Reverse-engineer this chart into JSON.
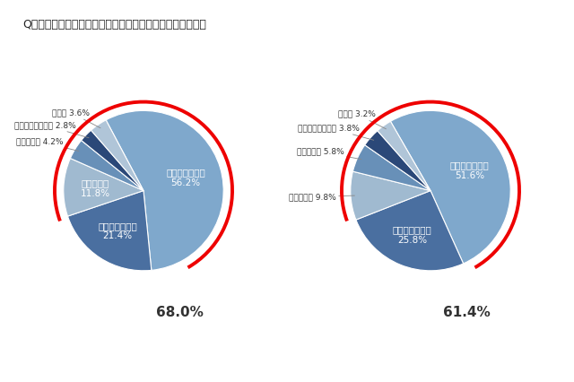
{
  "title": "Q：今年に入って自転車マナーが良くなったと思いますか？",
  "pie1": {
    "labels": [
      "良くなってない",
      "少し良くなった",
      "悪くなった",
      "良くなった",
      "とても良くなった",
      "その他"
    ],
    "values": [
      56.2,
      21.4,
      11.8,
      4.2,
      2.8,
      3.6
    ],
    "colors": [
      "#7FA8CC",
      "#4A6FA0",
      "#A0BAD0",
      "#6890B8",
      "#2B4878",
      "#B0C5D8"
    ],
    "pct_label": "68.0%",
    "inside_labels": [
      0,
      1
    ],
    "startangle": 118
  },
  "pie2": {
    "labels": [
      "良くなってない",
      "少し良くなった",
      "悪くなった",
      "良くなった",
      "とても良くなった",
      "その他"
    ],
    "values": [
      51.6,
      25.8,
      9.8,
      5.8,
      3.8,
      3.2
    ],
    "colors": [
      "#7FA8CC",
      "#4A6FA0",
      "#A0BAD0",
      "#6890B8",
      "#2B4878",
      "#B0C5D8"
    ],
    "pct_label": "61.4%",
    "inside_labels": [
      0,
      1
    ],
    "startangle": 120
  },
  "background_color": "#FFFFFF",
  "text_color": "#555555",
  "dark_text_color": "#333333",
  "red_circle_color": "#EE0000",
  "title_fontsize": 9,
  "label_fontsize": 6.5,
  "inside_fontsize": 7.5,
  "pct_fontsize": 11
}
